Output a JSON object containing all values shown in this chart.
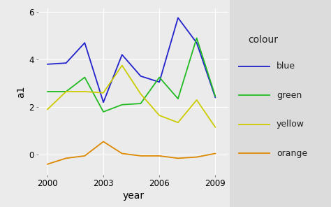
{
  "years": [
    2000,
    2001,
    2002,
    2003,
    2004,
    2005,
    2006,
    2007,
    2008,
    2009
  ],
  "blue": [
    3.8,
    3.85,
    4.7,
    2.2,
    4.2,
    3.3,
    3.05,
    5.75,
    4.7,
    2.4
  ],
  "green": [
    2.65,
    2.65,
    3.25,
    1.8,
    2.1,
    2.15,
    3.25,
    2.35,
    4.9,
    2.45
  ],
  "yellow": [
    1.9,
    2.65,
    2.65,
    2.6,
    3.75,
    2.55,
    1.65,
    1.35,
    2.3,
    1.15
  ],
  "orange": [
    -0.4,
    -0.15,
    -0.05,
    0.55,
    0.05,
    -0.05,
    -0.05,
    -0.15,
    -0.1,
    0.05
  ],
  "line_colors": {
    "blue": "#2222CC",
    "green": "#22BB22",
    "yellow": "#CCCC00",
    "orange": "#DD8800"
  },
  "xlabel": "year",
  "ylabel": "a1",
  "xlim": [
    1999.5,
    2009.7
  ],
  "ylim": [
    -0.85,
    6.15
  ],
  "yticks": [
    0,
    2,
    4,
    6
  ],
  "xticks": [
    2000,
    2003,
    2006,
    2009
  ],
  "legend_title": "colour",
  "legend_labels": [
    "blue",
    "green",
    "yellow",
    "orange"
  ],
  "plot_bg_color": "#EBEBEB",
  "legend_bg_color": "#DCDCDC",
  "fig_bg_color": "#EBEBEB",
  "grid_color": "#FFFFFF",
  "linewidth": 1.3
}
